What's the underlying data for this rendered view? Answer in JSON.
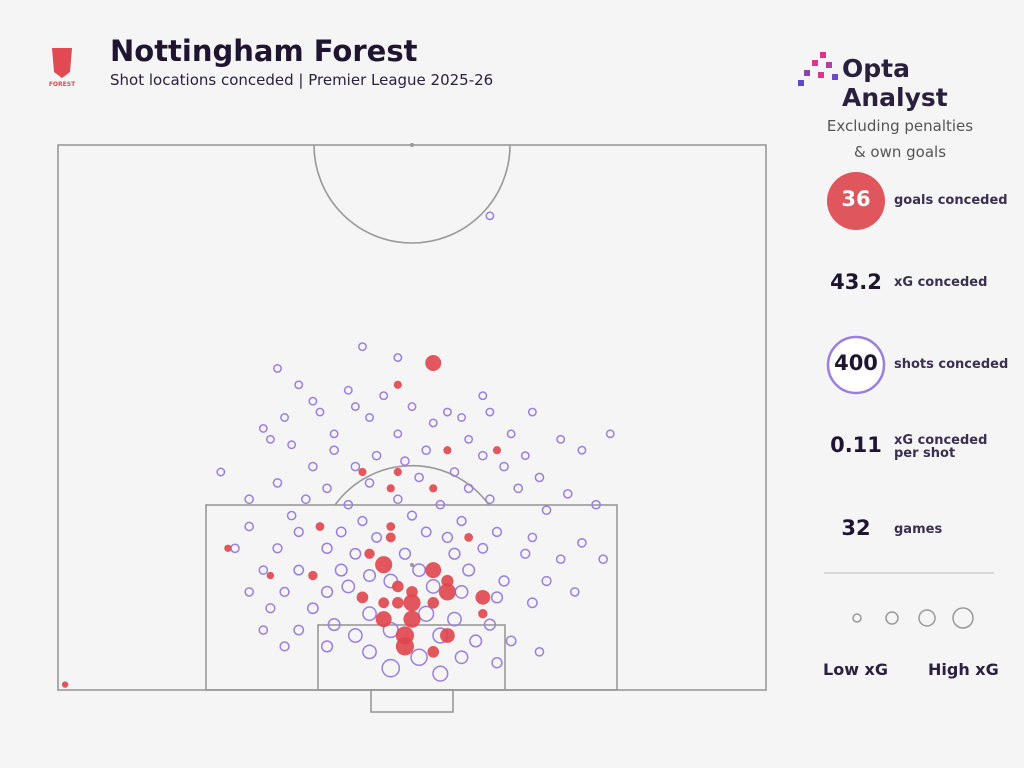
{
  "header": {
    "title": "Nottingham Forest",
    "subtitle": "Shot locations conceded | Premier League 2025-26",
    "crest_text": "FOREST",
    "brand": "Opta Analyst"
  },
  "panel": {
    "note": [
      "Excluding penalties",
      "& own goals"
    ],
    "stats": [
      {
        "value": 36,
        "label": "goals conceded"
      },
      {
        "value": 43.2,
        "label": "xG conceded"
      },
      {
        "value": 400,
        "label": "shots conceded"
      },
      {
        "value": 0.11,
        "label": "xG conceded per shot"
      },
      {
        "value": 32,
        "label": "games"
      }
    ],
    "legend": [
      "Low xG",
      "High xG"
    ]
  },
  "chart_data": {
    "type": "scatter",
    "xlim": [
      0,
      100
    ],
    "ylim": [
      0,
      100
    ],
    "series": [
      {
        "color": "#e0464e",
        "x": [
          53,
          48,
          43,
          48,
          47,
          53,
          55,
          62,
          37,
          47,
          58,
          24,
          30,
          36,
          46,
          53,
          55,
          55,
          60,
          43,
          46,
          48,
          50,
          50,
          46,
          50,
          60,
          55,
          49,
          49,
          53,
          1,
          48,
          53,
          44,
          47
        ],
        "y": [
          60,
          56,
          40,
          40,
          37,
          37,
          44,
          44,
          30,
          30,
          28,
          26,
          21,
          21,
          23,
          22,
          20,
          18,
          17,
          17,
          16,
          16,
          18,
          16,
          13,
          13,
          14,
          10,
          10,
          8,
          7,
          1,
          19,
          16,
          25,
          28
        ],
        "size": [
          0.25,
          0.03,
          0.03,
          0.03,
          0.03,
          0.03,
          0.03,
          0.03,
          0.04,
          0.04,
          0.04,
          0.02,
          0.02,
          0.05,
          0.3,
          0.25,
          0.12,
          0.3,
          0.2,
          0.1,
          0.08,
          0.1,
          0.1,
          0.3,
          0.25,
          0.3,
          0.05,
          0.2,
          0.35,
          0.35,
          0.1,
          0.01,
          0.1,
          0.1,
          0.07,
          0.06
        ]
      },
      {
        "color": "#9b7fe0",
        "x": [
          43,
          48,
          31,
          34,
          41,
          46,
          36,
          50,
          55,
          60,
          61,
          67,
          42,
          37,
          32,
          29,
          44,
          57,
          53,
          64,
          71,
          78,
          23,
          30,
          39,
          48,
          58,
          66,
          74,
          33,
          39,
          45,
          52,
          60,
          36,
          42,
          49,
          56,
          63,
          68,
          31,
          38,
          44,
          51,
          58,
          65,
          72,
          27,
          35,
          41,
          48,
          54,
          61,
          69,
          76,
          43,
          50,
          57,
          33,
          27,
          34,
          40,
          45,
          52,
          55,
          62,
          67,
          74,
          25,
          31,
          38,
          42,
          49,
          56,
          60,
          66,
          71,
          77,
          29,
          34,
          40,
          44,
          51,
          58,
          63,
          69,
          73,
          27,
          32,
          38,
          41,
          47,
          53,
          57,
          62,
          67,
          30,
          36,
          44,
          52,
          56,
          61,
          34,
          39,
          42,
          47,
          54,
          59,
          64,
          32,
          38,
          44,
          51,
          57,
          62,
          47,
          54,
          68,
          29,
          61
        ],
        "y": [
          63,
          61,
          59,
          56,
          55,
          54,
          53,
          52,
          51,
          54,
          51,
          51,
          52,
          51,
          50,
          48,
          50,
          50,
          49,
          47,
          46,
          47,
          40,
          46,
          47,
          47,
          46,
          43,
          44,
          45,
          44,
          43,
          44,
          43,
          41,
          41,
          42,
          40,
          41,
          39,
          38,
          37,
          38,
          39,
          37,
          37,
          36,
          35,
          35,
          34,
          35,
          34,
          35,
          33,
          34,
          31,
          32,
          31,
          32,
          30,
          29,
          29,
          28,
          29,
          28,
          29,
          28,
          27,
          26,
          26,
          26,
          25,
          25,
          25,
          26,
          25,
          24,
          24,
          22,
          22,
          22,
          21,
          22,
          22,
          20,
          20,
          18,
          18,
          18,
          18,
          19,
          20,
          19,
          18,
          17,
          16,
          15,
          15,
          14,
          14,
          13,
          12,
          11,
          12,
          10,
          11,
          10,
          9,
          9,
          8,
          8,
          7,
          6,
          6,
          5,
          4,
          3,
          7,
          11,
          87
        ],
        "size": [
          0.02,
          0.02,
          0.02,
          0.02,
          0.02,
          0.02,
          0.02,
          0.02,
          0.02,
          0.02,
          0.02,
          0.02,
          0.02,
          0.02,
          0.02,
          0.02,
          0.02,
          0.02,
          0.02,
          0.02,
          0.02,
          0.02,
          0.02,
          0.02,
          0.02,
          0.02,
          0.02,
          0.02,
          0.02,
          0.02,
          0.03,
          0.03,
          0.03,
          0.03,
          0.03,
          0.03,
          0.03,
          0.03,
          0.03,
          0.03,
          0.03,
          0.03,
          0.03,
          0.03,
          0.03,
          0.03,
          0.03,
          0.03,
          0.03,
          0.03,
          0.03,
          0.03,
          0.03,
          0.03,
          0.03,
          0.04,
          0.04,
          0.04,
          0.03,
          0.03,
          0.04,
          0.05,
          0.05,
          0.05,
          0.06,
          0.04,
          0.03,
          0.03,
          0.03,
          0.04,
          0.06,
          0.07,
          0.08,
          0.08,
          0.05,
          0.04,
          0.03,
          0.03,
          0.03,
          0.05,
          0.1,
          0.1,
          0.12,
          0.1,
          0.06,
          0.04,
          0.03,
          0.03,
          0.04,
          0.08,
          0.12,
          0.15,
          0.15,
          0.12,
          0.08,
          0.05,
          0.04,
          0.07,
          0.15,
          0.2,
          0.15,
          0.08,
          0.05,
          0.1,
          0.15,
          0.2,
          0.2,
          0.1,
          0.05,
          0.04,
          0.08,
          0.15,
          0.25,
          0.12,
          0.06,
          0.3,
          0.2,
          0.03,
          0.03,
          0.02
        ]
      }
    ]
  }
}
